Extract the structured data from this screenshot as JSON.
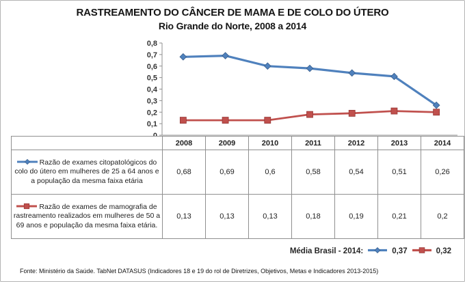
{
  "title": {
    "line1": "RASTREAMENTO DO CÂNCER DE MAMA E DE COLO DO ÚTERO",
    "line2": "Rio Grande do Norte, 2008 a 2014"
  },
  "colors": {
    "series1": "#4F81BD",
    "series1_edge": "#385D8A",
    "series2": "#C0504D",
    "series2_edge": "#943634",
    "axis": "#8f8f8f",
    "table_border": "#8f8f8f"
  },
  "chart_data": {
    "type": "line",
    "categories": [
      "2008",
      "2009",
      "2010",
      "2011",
      "2012",
      "2013",
      "2014"
    ],
    "series": [
      {
        "name": "Razão de exames citopatológicos do colo do útero em mulheres de 25 a 64 anos e a população da mesma faixa etária",
        "values": [
          0.68,
          0.69,
          0.6,
          0.58,
          0.54,
          0.51,
          0.26
        ],
        "display_values": [
          "0,68",
          "0,69",
          "0,6",
          "0,58",
          "0,54",
          "0,51",
          "0,26"
        ],
        "color": "#4F81BD",
        "marker": "diamond"
      },
      {
        "name": "Razão de exames de mamografia de rastreamento realizados em mulheres de 50 a 69 anos e população da mesma faixa etária.",
        "values": [
          0.13,
          0.13,
          0.13,
          0.18,
          0.19,
          0.21,
          0.2
        ],
        "display_values": [
          "0,13",
          "0,13",
          "0,13",
          "0,18",
          "0,19",
          "0,21",
          "0,2"
        ],
        "color": "#C0504D",
        "marker": "square"
      }
    ],
    "title": "RASTREAMENTO DO CÂNCER DE MAMA E DE COLO DO ÚTERO — Rio Grande do Norte, 2008 a 2014",
    "xlabel": "",
    "ylabel": "",
    "ylim": [
      0,
      0.8
    ],
    "ytick_step": 0.1,
    "ytick_labels": [
      "0",
      "0,1",
      "0,2",
      "0,3",
      "0,4",
      "0,5",
      "0,6",
      "0,7",
      "0,8"
    ],
    "grid": false,
    "legend_position": "table-left"
  },
  "media_brasil": {
    "label": "Média Brasil - 2014:",
    "series1_value": "0,37",
    "series2_value": "0,32"
  },
  "footer": "Fonte: Ministério da Saúde. TabNet DATASUS (Indicadores 18 e 19 do rol de Diretrizes, Objetivos, Metas e Indicadores 2013-2015)"
}
